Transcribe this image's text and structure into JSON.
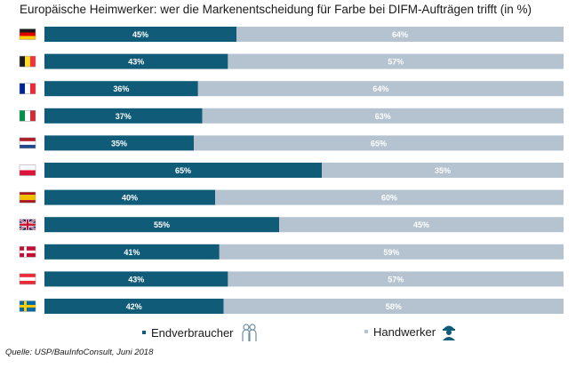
{
  "title": "Europäische Heimwerker: wer die Markenentscheidung  für Farbe bei DIFM-Aufträgen trifft (in %)",
  "source": "Quelle: USP/BauInfoConsult, Juni 2018",
  "colors": {
    "endverbraucher": "#0f5b78",
    "handwerker": "#b4c3cf",
    "label_light": "#ffffff"
  },
  "chart_data": {
    "type": "bar",
    "orientation": "horizontal",
    "stacked": true,
    "title": "Europäische Heimwerker: wer die Markenentscheidung  für Farbe bei DIFM-Aufträgen trifft (in %)",
    "categories": [
      "DE",
      "BE",
      "FR",
      "IT",
      "NL",
      "PL",
      "ES",
      "UK",
      "DK",
      "AT",
      "SE"
    ],
    "category_icons": [
      "flag-germany",
      "flag-belgium",
      "flag-france",
      "flag-italy",
      "flag-netherlands",
      "flag-poland",
      "flag-spain",
      "flag-united-kingdom",
      "flag-denmark",
      "flag-austria",
      "flag-sweden"
    ],
    "series": [
      {
        "name": "Endverbraucher",
        "values": [
          45,
          43,
          36,
          37,
          35,
          65,
          40,
          55,
          41,
          43,
          42
        ],
        "labels": [
          "45%",
          "43%",
          "36%",
          "37%",
          "35%",
          "65%",
          "40%",
          "55%",
          "41%",
          "43%",
          "42%"
        ]
      },
      {
        "name": "Handwerker",
        "values": [
          64,
          57,
          64,
          63,
          65,
          35,
          60,
          45,
          59,
          57,
          58
        ],
        "labels": [
          "64%",
          "57%",
          "64%",
          "63%",
          "65%",
          "35%",
          "60%",
          "45%",
          "59%",
          "57%",
          "58%"
        ]
      }
    ],
    "legend": [
      "Endverbraucher",
      "Handwerker"
    ],
    "legend_position": "bottom",
    "grid": false
  }
}
